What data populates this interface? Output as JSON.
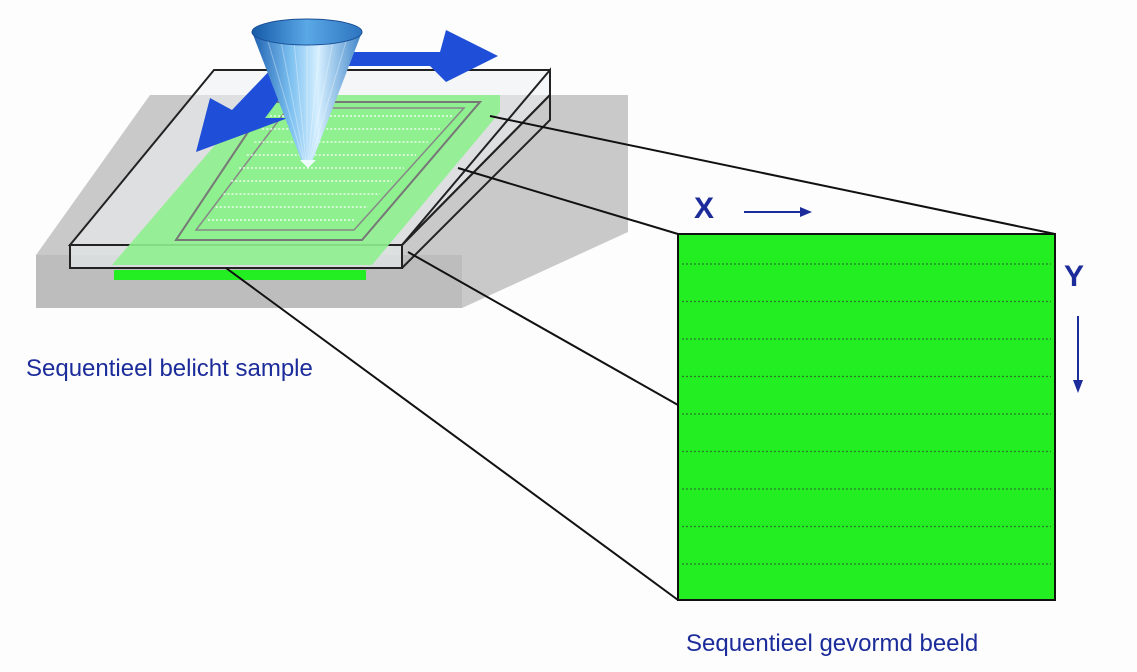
{
  "labels": {
    "sample_caption": "Sequentieel belicht sample",
    "image_caption": "Sequentieel gevormd beeld",
    "x_axis": "X",
    "y_axis": "Y"
  },
  "colors": {
    "text": "#1c2c9a",
    "image_green": "#22ee22",
    "exposed_green": "#8ef08e",
    "arrow_blue": "#1f4fd8",
    "substrate_gray": "#c8c8c8"
  },
  "scan_line_count": 9
}
